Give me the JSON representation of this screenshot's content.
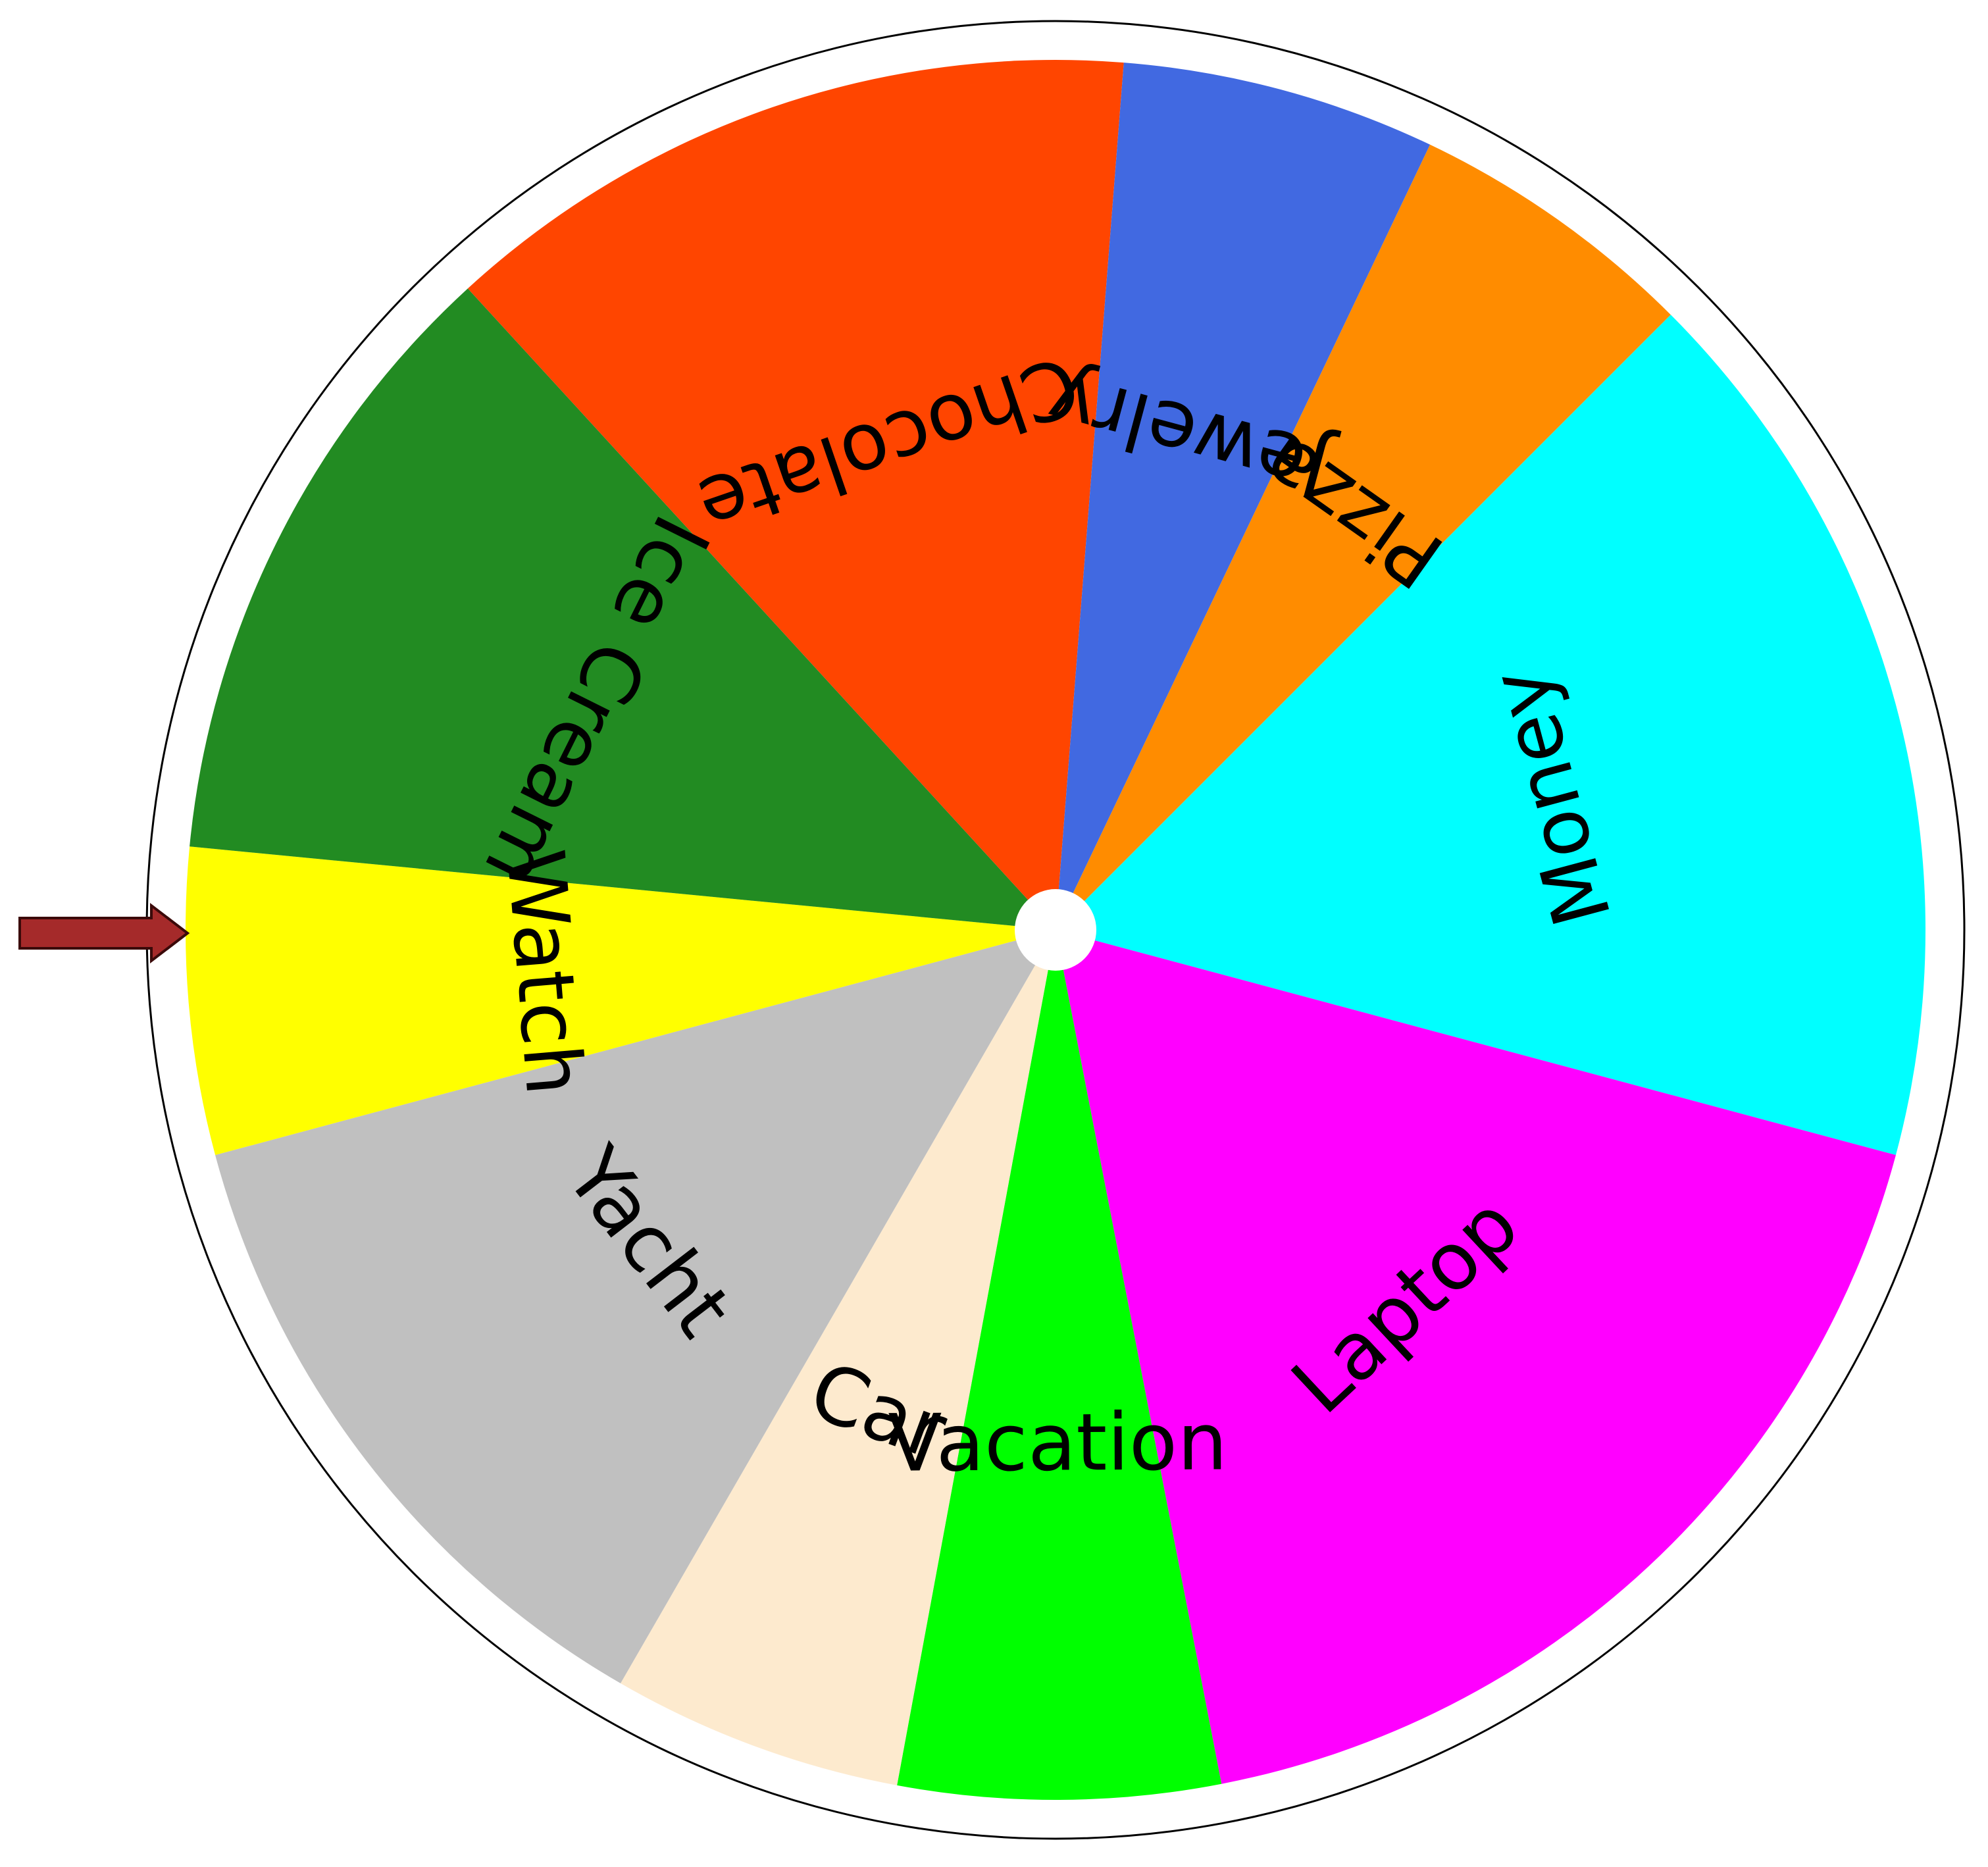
{
  "wheel": {
    "segments": [
      {
        "label": "Money",
        "color": "#00FFFF",
        "start_deg": -45.0,
        "end_deg": 15.0
      },
      {
        "label": "Laptop",
        "color": "#FF00FF",
        "start_deg": 15.0,
        "end_deg": 79.0
      },
      {
        "label": "Vacation",
        "color": "#00FF00",
        "start_deg": 79.0,
        "end_deg": 100.5
      },
      {
        "label": "Car",
        "color": "#FDEACE",
        "start_deg": 100.5,
        "end_deg": 120.0
      },
      {
        "label": "Yacht",
        "color": "#C0C0C0",
        "start_deg": 120.0,
        "end_deg": 165.0
      },
      {
        "label": "Watch",
        "color": "#FFFF00",
        "start_deg": 165.0,
        "end_deg": 185.5
      },
      {
        "label": "Ice Cream",
        "color": "#228B22",
        "start_deg": 185.5,
        "end_deg": 227.5
      },
      {
        "label": "Chocolate",
        "color": "#FF4500",
        "start_deg": 227.5,
        "end_deg": 274.5
      },
      {
        "label": "Jewelry",
        "color": "#4169E1",
        "start_deg": 274.5,
        "end_deg": 295.5
      },
      {
        "label": "Pizza",
        "color": "#FF8C00",
        "start_deg": 295.5,
        "end_deg": 315.0
      }
    ],
    "rim_color": "#FFFFFF",
    "outline_color": "#000000",
    "hub_color": "#FFFFFF"
  },
  "pointer": {
    "icon": "arrow-right-icon",
    "color": "#A52A2A",
    "outline_color": "#3B0A0A"
  }
}
